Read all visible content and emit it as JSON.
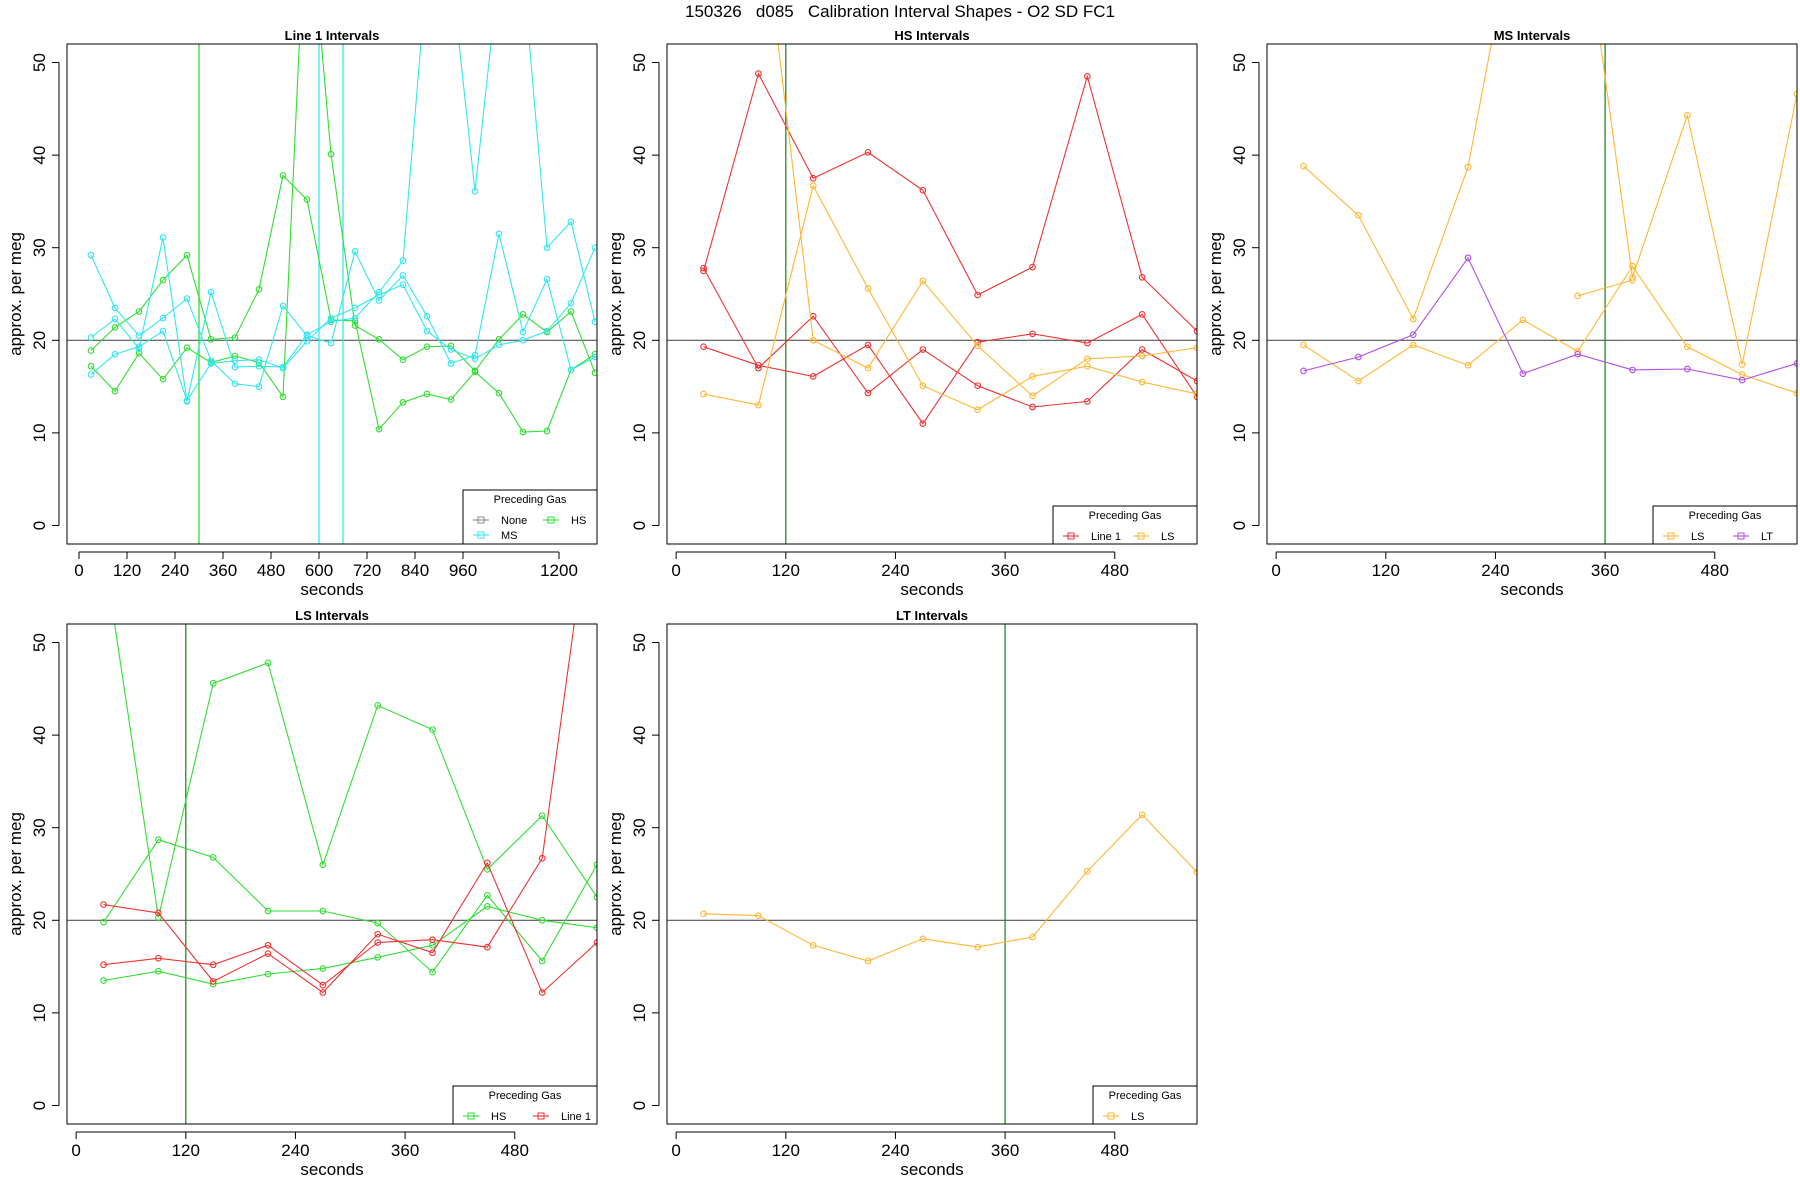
{
  "figure_title": "150326   d085   Calibration Interval Shapes - O2 SD FC1",
  "colors": {
    "None": "#8c8c8c",
    "HS": "#33dd33",
    "MS": "#33e6ee",
    "Line 1": "#ee3333",
    "LS": "#ffb733",
    "LT": "#b04de8",
    "ref_line": "#555555",
    "vline": "#228b22",
    "axis": "#000000"
  },
  "chart_data": [
    {
      "type": "line",
      "title": "Line 1 Intervals",
      "xlabel": "seconds",
      "ylabel": "approx. per meg",
      "xlim": [
        -30,
        1295
      ],
      "ylim": [
        -2,
        52
      ],
      "xticks": [
        0,
        120,
        240,
        360,
        480,
        600,
        720,
        840,
        960,
        1200
      ],
      "yticks": [
        0,
        10,
        20,
        30,
        40,
        50
      ],
      "hline": 20,
      "vlines": [
        {
          "x": 300,
          "color": "HS"
        },
        {
          "x": 600,
          "color": "MS"
        },
        {
          "x": 660,
          "color": "MS"
        }
      ],
      "legend": {
        "title": "Preceding Gas",
        "entries": [
          "None",
          "HS",
          "MS"
        ]
      },
      "series": [
        {
          "name": "HS",
          "x": [
            30,
            90,
            150,
            210,
            270,
            330,
            390,
            450,
            510,
            570,
            630,
            690,
            750,
            810,
            870,
            930,
            990,
            1050,
            1110,
            1170,
            1230,
            1290
          ],
          "y": [
            17.2,
            14.5,
            18.6,
            15.8,
            19.2,
            17.6,
            18.3,
            17.6,
            13.9,
            70,
            40.1,
            21.6,
            20.1,
            17.9,
            19.3,
            19.4,
            16.7,
            20.1,
            22.8,
            20.9,
            23.1,
            16.5
          ]
        },
        {
          "name": "HS",
          "x": [
            30,
            90,
            150,
            210,
            270,
            330,
            390,
            450,
            510,
            570,
            630,
            690,
            750,
            810,
            870,
            930,
            990,
            1050,
            1110,
            1170,
            1230,
            1290
          ],
          "y": [
            18.9,
            21.4,
            23.1,
            26.5,
            29.2,
            20.1,
            20.3,
            25.5,
            37.8,
            35.2,
            22.2,
            22.1,
            10.4,
            13.3,
            14.2,
            13.6,
            16.6,
            14.3,
            10.1,
            10.2,
            16.8,
            18.5
          ]
        },
        {
          "name": "MS",
          "x": [
            30,
            90,
            150,
            210,
            270,
            330,
            390,
            450,
            510,
            570,
            630,
            690,
            750,
            810,
            870,
            930,
            990,
            1050,
            1110,
            1170,
            1230,
            1290
          ],
          "y": [
            29.2,
            23.5,
            20.5,
            22.4,
            24.5,
            17.8,
            15.3,
            15,
            23.7,
            20.5,
            19.7,
            29.6,
            24.3,
            27,
            22.6,
            17.5,
            18.4,
            31.5,
            20.9,
            26.6,
            16.8,
            18.2
          ]
        },
        {
          "name": "MS",
          "x": [
            30,
            90,
            150,
            210,
            270,
            330,
            390,
            450,
            510,
            570,
            630,
            690,
            750,
            810,
            870,
            930,
            990,
            1050,
            1110,
            1170,
            1230,
            1290
          ],
          "y": [
            20.3,
            22.3,
            19.1,
            31.1,
            13.4,
            25.2,
            17.1,
            17.2,
            17.1,
            20.6,
            22,
            22.4,
            25.2,
            28.6,
            60,
            60,
            36.1,
            60,
            60,
            30,
            32.8,
            22
          ]
        },
        {
          "name": "MS",
          "x": [
            30,
            90,
            150,
            210,
            270,
            330,
            390,
            450,
            510,
            570,
            630,
            690,
            750,
            810,
            870,
            930,
            990,
            1050,
            1110,
            1170,
            1230,
            1290
          ],
          "y": [
            16.3,
            18.5,
            19.3,
            21,
            13.5,
            17.5,
            17.8,
            17.9,
            17,
            19.9,
            22.4,
            23.5,
            24.9,
            26,
            21,
            19,
            18,
            19.5,
            20,
            21,
            24,
            30
          ]
        }
      ]
    },
    {
      "type": "line",
      "title": "HS Intervals",
      "xlabel": "seconds",
      "ylabel": "approx. per meg",
      "xlim": [
        -10,
        570
      ],
      "ylim": [
        -2,
        52
      ],
      "xticks": [
        0,
        120,
        240,
        360,
        480
      ],
      "yticks": [
        0,
        10,
        20,
        30,
        40,
        50
      ],
      "hline": 20,
      "vlines": [
        {
          "x": 120,
          "color": "vline"
        }
      ],
      "legend": {
        "title": "Preceding Gas",
        "entries": [
          "Line 1",
          "LS"
        ]
      },
      "series": [
        {
          "name": "Line 1",
          "x": [
            30,
            90,
            150,
            210,
            270,
            330,
            390,
            450,
            510,
            570
          ],
          "y": [
            27.5,
            48.8,
            37.5,
            40.3,
            36.2,
            24.9,
            27.9,
            48.5,
            26.8,
            21
          ]
        },
        {
          "name": "Line 1",
          "x": [
            30,
            90,
            150,
            210,
            270,
            330,
            390,
            450,
            510,
            570
          ],
          "y": [
            19.3,
            17.3,
            16.1,
            19.5,
            11,
            19.8,
            20.7,
            19.7,
            22.8,
            13.9
          ]
        },
        {
          "name": "Line 1",
          "x": [
            30,
            90,
            150,
            210,
            270,
            330,
            390,
            450,
            510,
            570
          ],
          "y": [
            27.8,
            17,
            22.6,
            14.3,
            19,
            15.1,
            12.8,
            13.4,
            19,
            15.6
          ]
        },
        {
          "name": "LS",
          "x": [
            30,
            90,
            150,
            210,
            270,
            330,
            390,
            450,
            510,
            570
          ],
          "y": [
            14.2,
            13,
            36.7,
            25.6,
            15.1,
            12.5,
            16.1,
            17.2,
            15.5,
            14.2
          ]
        },
        {
          "name": "LS",
          "x": [
            90,
            150,
            210,
            270,
            330,
            390,
            450,
            510,
            570
          ],
          "y": [
            70,
            20,
            17,
            26.4,
            19.4,
            14,
            18,
            18.3,
            19.2
          ]
        }
      ]
    },
    {
      "type": "line",
      "title": "MS Intervals",
      "xlabel": "seconds",
      "ylabel": "approx. per meg",
      "xlim": [
        -10,
        570
      ],
      "ylim": [
        -2,
        52
      ],
      "xticks": [
        0,
        120,
        240,
        360,
        480
      ],
      "yticks": [
        0,
        10,
        20,
        30,
        40,
        50
      ],
      "hline": 20,
      "vlines": [
        {
          "x": 360,
          "color": "vline"
        }
      ],
      "legend": {
        "title": "Preceding Gas",
        "entries": [
          "LS",
          "LT"
        ]
      },
      "series": [
        {
          "name": "LS",
          "x": [
            30,
            90,
            150,
            210,
            270,
            330,
            390,
            450,
            510,
            570
          ],
          "y": [
            38.8,
            33.5,
            22.3,
            38.7,
            70,
            70,
            26.8,
            44.3,
            17.4,
            46.6
          ]
        },
        {
          "name": "LS",
          "x": [
            30,
            90,
            150,
            210,
            270,
            330,
            390,
            450,
            510,
            570
          ],
          "y": [
            19.5,
            15.6,
            19.5,
            17.3,
            22.2,
            18.8,
            28,
            19.3,
            16.3,
            14.3
          ]
        },
        {
          "name": "LS",
          "x": [
            330,
            390
          ],
          "y": [
            24.8,
            26.5
          ]
        },
        {
          "name": "LT",
          "x": [
            30,
            90,
            150,
            210,
            270,
            330,
            390,
            450,
            510,
            570
          ],
          "y": [
            16.7,
            18.2,
            20.6,
            28.9,
            16.4,
            18.5,
            16.8,
            16.9,
            15.7,
            17.5
          ]
        }
      ]
    },
    {
      "type": "line",
      "title": "LS Intervals",
      "xlabel": "seconds",
      "ylabel": "approx. per meg",
      "xlim": [
        -10,
        570
      ],
      "ylim": [
        -2,
        52
      ],
      "xticks": [
        0,
        120,
        240,
        360,
        480
      ],
      "yticks": [
        0,
        10,
        20,
        30,
        40,
        50
      ],
      "hline": 20,
      "vlines": [
        {
          "x": 120,
          "color": "vline"
        }
      ],
      "legend": {
        "title": "Preceding Gas",
        "entries": [
          "HS",
          "Line 1"
        ]
      },
      "series": [
        {
          "name": "HS",
          "x": [
            30,
            90,
            150,
            210,
            270,
            330,
            390,
            450,
            510,
            570
          ],
          "y": [
            60,
            20.3,
            45.6,
            47.8,
            26,
            43.2,
            40.6,
            25.5,
            31.3,
            22.5
          ]
        },
        {
          "name": "HS",
          "x": [
            30,
            90,
            150,
            210,
            270,
            330,
            390,
            450,
            510,
            570
          ],
          "y": [
            19.8,
            28.7,
            26.8,
            21,
            21,
            19.7,
            14.4,
            22.7,
            15.6,
            26
          ]
        },
        {
          "name": "HS",
          "x": [
            30,
            90,
            150,
            210,
            270,
            330,
            390,
            450,
            510,
            570
          ],
          "y": [
            13.5,
            14.5,
            13.1,
            14.2,
            14.8,
            16,
            17.3,
            21.5,
            20,
            19.2
          ]
        },
        {
          "name": "Line 1",
          "x": [
            30,
            90,
            150,
            210,
            270,
            330,
            390,
            450,
            510,
            570
          ],
          "y": [
            21.7,
            20.8,
            13.4,
            16.4,
            12.2,
            18.5,
            16.5,
            26.2,
            12.2,
            17.6
          ]
        },
        {
          "name": "Line 1",
          "x": [
            30,
            90,
            150,
            210,
            270,
            330,
            390,
            450,
            510,
            570
          ],
          "y": [
            15.2,
            15.9,
            15.2,
            17.3,
            13,
            17.6,
            17.9,
            17.1,
            26.7,
            70
          ]
        }
      ]
    },
    {
      "type": "line",
      "title": "LT Intervals",
      "xlabel": "seconds",
      "ylabel": "approx. per meg",
      "xlim": [
        -10,
        570
      ],
      "ylim": [
        -2,
        52
      ],
      "xticks": [
        0,
        120,
        240,
        360,
        480
      ],
      "yticks": [
        0,
        10,
        20,
        30,
        40,
        50
      ],
      "hline": 20,
      "vlines": [
        {
          "x": 360,
          "color": "vline"
        }
      ],
      "legend": {
        "title": "Preceding Gas",
        "entries": [
          "LS"
        ]
      },
      "series": [
        {
          "name": "LS",
          "x": [
            30,
            90,
            150,
            210,
            270,
            330,
            390,
            450,
            510,
            570
          ],
          "y": [
            20.7,
            20.5,
            17.3,
            15.6,
            18,
            17.1,
            18.2,
            25.3,
            31.4,
            25.2
          ]
        }
      ]
    }
  ]
}
